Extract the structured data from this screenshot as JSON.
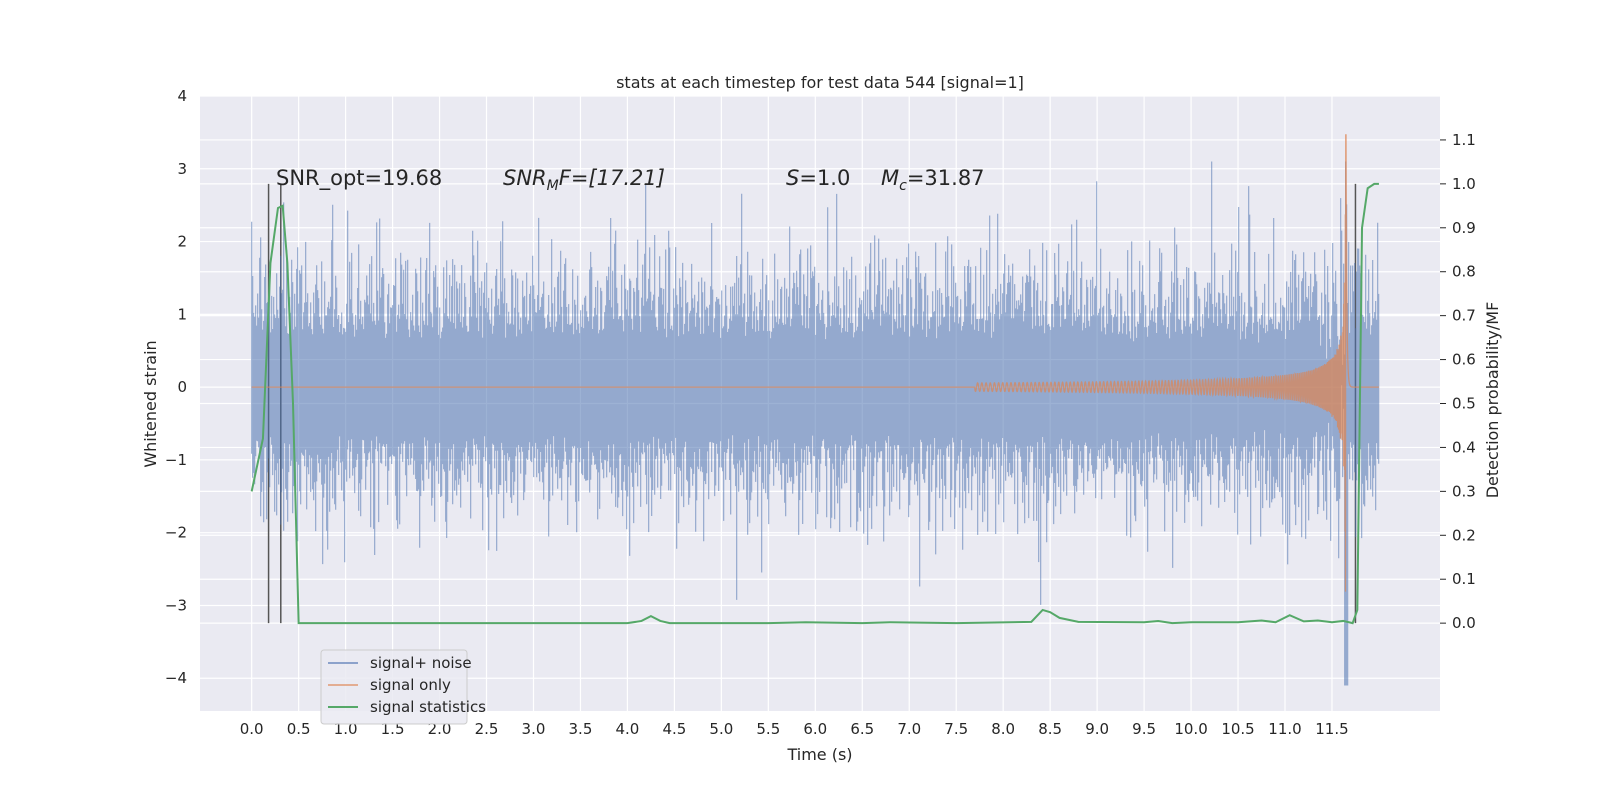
{
  "chart_data": {
    "type": "line",
    "title": "stats at each timestep for test data 544 [signal=1]",
    "xlabel": "Time (s)",
    "ylabel": "Whitened strain",
    "ylabel_right": "Detection probability/MF",
    "xlim": [
      -0.55,
      12.65
    ],
    "ylim": [
      -4.45,
      4.0
    ],
    "ylim_right": [
      -0.2,
      1.2
    ],
    "x_ticks": [
      "0.0",
      "0.5",
      "1.0",
      "1.5",
      "2.0",
      "2.5",
      "3.0",
      "3.5",
      "4.0",
      "4.5",
      "5.0",
      "5.5",
      "6.0",
      "6.5",
      "7.0",
      "7.5",
      "8.0",
      "8.5",
      "9.0",
      "9.5",
      "10.0",
      "10.5",
      "11.0",
      "11.5"
    ],
    "y_ticks": [
      "4",
      "3",
      "2",
      "1",
      "0",
      "−1",
      "−2",
      "−3",
      "−4"
    ],
    "y_right_ticks": [
      "1.1",
      "1.0",
      "0.9",
      "0.8",
      "0.7",
      "0.6",
      "0.5",
      "0.4",
      "0.3",
      "0.2",
      "0.1",
      "0.0"
    ],
    "grid": true,
    "legend_position": "lower-left",
    "annotations": {
      "snr_opt": "SNR_opt=19.68",
      "snr_mf_name": "SNR",
      "snr_mf_sub": "M",
      "snr_mf_rest": "F=[17.21]",
      "s_name": "S",
      "s_rest": "=1.0",
      "mc_name": "M",
      "mc_sub": "c",
      "mc_rest": "=31.87"
    },
    "vlines": [
      0.18,
      0.31,
      11.75
    ],
    "series": [
      {
        "name": "signal+ noise",
        "color": "#4c72b0",
        "x_start": 0.0,
        "x_end": 12.0,
        "typical_amplitude": 1.6,
        "peak_upper": 3.1,
        "peak_lower": -4.1
      },
      {
        "name": "signal only",
        "color": "#dd8452",
        "x_start": 0.0,
        "x_end": 12.0,
        "chirp_visible_from": 7.7,
        "chirp_peak_time": 11.65,
        "peak_amplitude": 3.6,
        "min_amplitude": -3.4
      },
      {
        "name": "signal statistics",
        "color": "#55a868",
        "x": [
          0.0,
          0.12,
          0.2,
          0.28,
          0.33,
          0.38,
          0.44,
          0.5,
          0.58,
          1.0,
          2.0,
          3.0,
          4.0,
          4.15,
          4.25,
          4.35,
          4.45,
          5.0,
          5.5,
          5.9,
          6.5,
          6.8,
          7.5,
          8.3,
          8.42,
          8.5,
          8.6,
          8.8,
          9.5,
          9.65,
          9.8,
          10.0,
          10.5,
          10.75,
          10.9,
          11.05,
          11.2,
          11.35,
          11.5,
          11.62,
          11.72,
          11.77,
          11.82,
          11.88,
          11.95,
          12.0
        ],
        "y": [
          0.3,
          0.42,
          0.82,
          0.945,
          0.95,
          0.82,
          0.5,
          0.0,
          0.0,
          0.0,
          0.0,
          0.0,
          0.0,
          0.005,
          0.016,
          0.005,
          0.0,
          0.0,
          0.0,
          0.002,
          0.0,
          0.002,
          0.0,
          0.003,
          0.03,
          0.025,
          0.012,
          0.003,
          0.002,
          0.005,
          0.0,
          0.002,
          0.002,
          0.006,
          0.002,
          0.018,
          0.004,
          0.006,
          0.002,
          0.005,
          0.0,
          0.03,
          0.9,
          0.99,
          1.0,
          1.0
        ]
      }
    ]
  }
}
